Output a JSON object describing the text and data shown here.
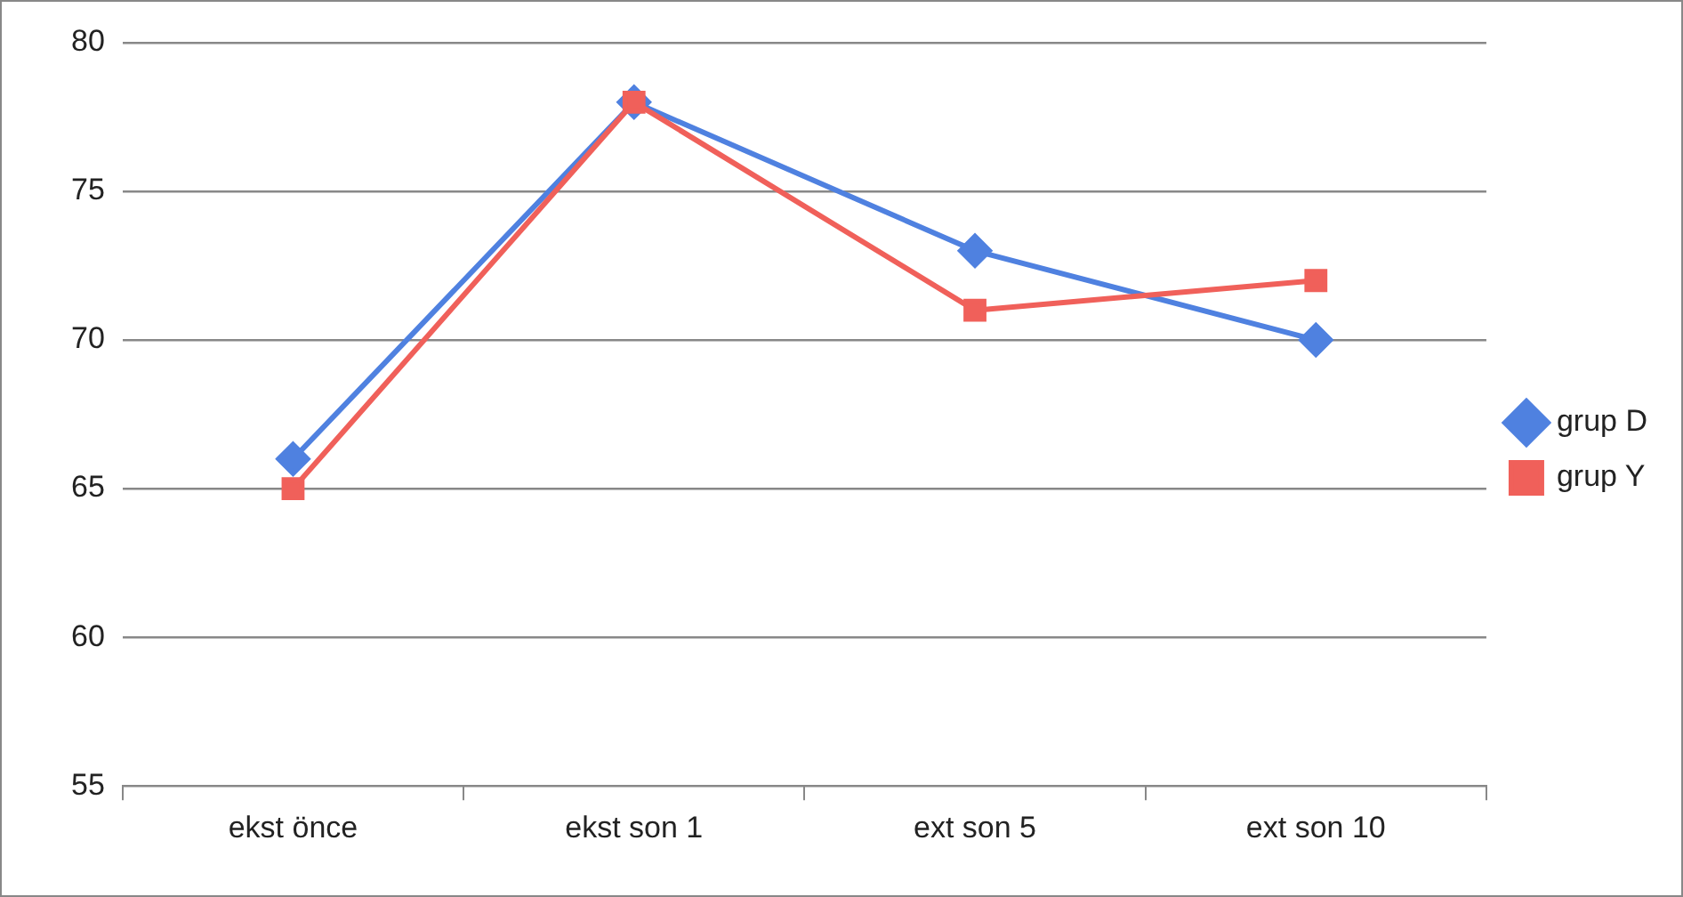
{
  "chart_data": {
    "type": "line",
    "categories": [
      "ekst önce",
      "ekst son 1",
      "ext son 5",
      "ext son 10"
    ],
    "series": [
      {
        "name": "grup D",
        "color": "#4f81e0",
        "values": [
          66,
          78,
          73,
          70
        ],
        "marker": "diamond"
      },
      {
        "name": "grup Y",
        "color": "#f0605a",
        "values": [
          65,
          78,
          71,
          72
        ],
        "marker": "square"
      }
    ],
    "ylim": [
      55,
      80
    ],
    "yticks": [
      55,
      60,
      65,
      70,
      75,
      80
    ],
    "grid": "y",
    "legend": "right",
    "line_style": "solid"
  }
}
